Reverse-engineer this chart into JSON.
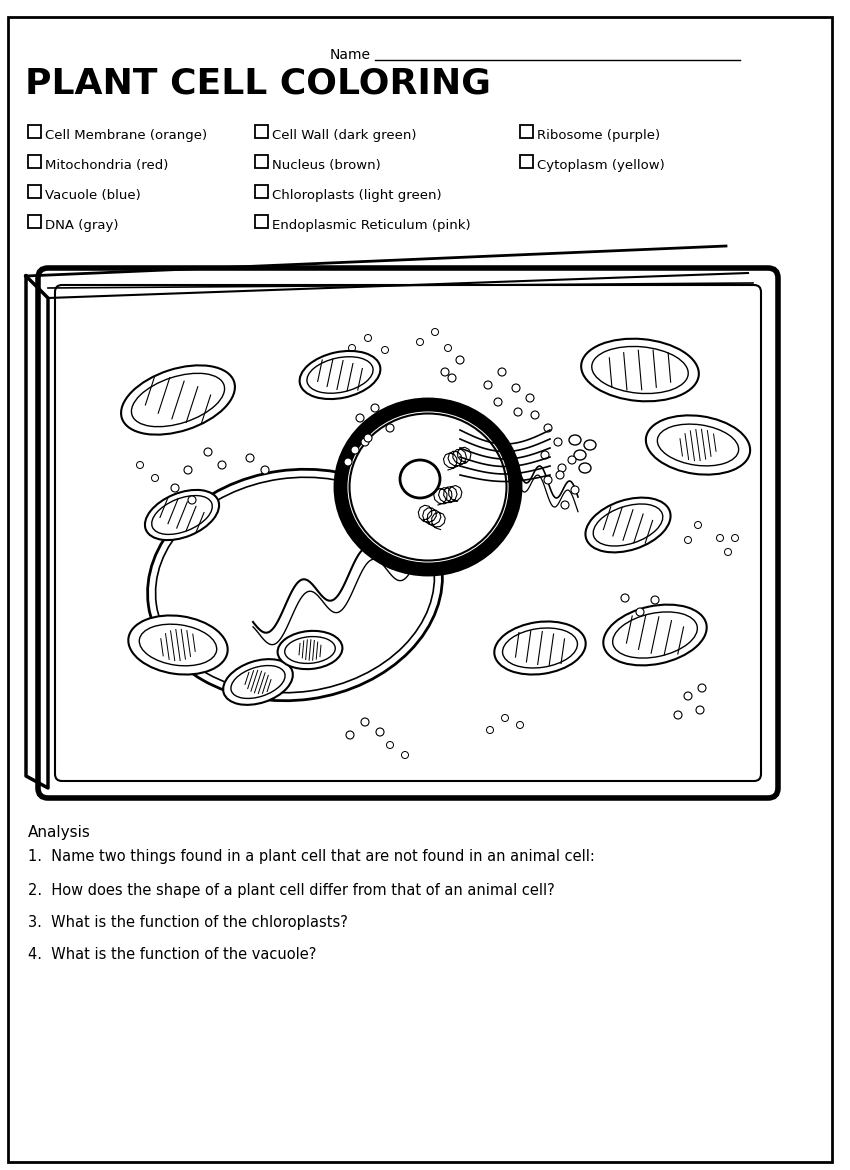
{
  "title": "PLANT CELL COLORING",
  "name_label": "Name",
  "background_color": "#ffffff",
  "legend_col1": [
    "Cell Membrane (orange)",
    "Mitochondria (red)",
    "Vacuole (blue)",
    "DNA (gray)"
  ],
  "legend_col2": [
    "Cell Wall (dark green)",
    "Nucleus (brown)",
    "Chloroplasts (light green)",
    "Endoplasmic Reticulum (pink)"
  ],
  "legend_col3": [
    "Ribosome (purple)",
    "Cytoplasm (yellow)"
  ],
  "analysis_header": "Analysis",
  "questions": [
    "1.  Name two things found in a plant cell that are not found in an animal cell:",
    "2.  How does the shape of a plant cell differ from that of an animal cell?",
    "3.  What is the function of the chloroplasts?",
    "4.  What is the function of the vacuole?"
  ]
}
